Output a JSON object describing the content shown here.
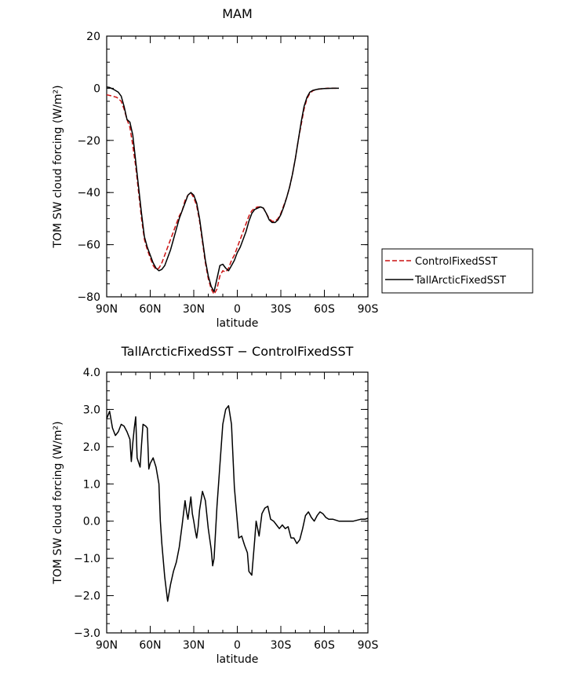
{
  "chart_data": [
    {
      "type": "line",
      "title": "MAM",
      "xlabel": "latitude",
      "ylabel": "TOM SW cloud forcing (W/m²)",
      "xlim": [
        90,
        -90
      ],
      "ylim": [
        -80,
        20
      ],
      "x_ticks": [
        90,
        60,
        30,
        0,
        -30,
        -60,
        -90
      ],
      "x_tick_labels": [
        "90N",
        "60N",
        "30N",
        "0",
        "30S",
        "60S",
        "90S"
      ],
      "y_ticks": [
        20,
        0,
        -20,
        -40,
        -60,
        -80
      ],
      "y_tick_labels": [
        "20",
        "0",
        "−20",
        "−40",
        "−60",
        "−80"
      ],
      "legend_position": "right",
      "series": [
        {
          "name": "ControlFixedSST",
          "color": "#cc1111",
          "style": "dashed",
          "points": [
            [
              90,
              -2.5
            ],
            [
              86,
              -3
            ],
            [
              83,
              -3.5
            ],
            [
              80,
              -5
            ],
            [
              78,
              -8
            ],
            [
              76,
              -12
            ],
            [
              74,
              -15
            ],
            [
              72,
              -22
            ],
            [
              70,
              -30
            ],
            [
              68,
              -40
            ],
            [
              66,
              -50
            ],
            [
              64,
              -58
            ],
            [
              62,
              -62
            ],
            [
              60,
              -65
            ],
            [
              58,
              -68
            ],
            [
              56,
              -69.5
            ],
            [
              54,
              -69
            ],
            [
              52,
              -67
            ],
            [
              50,
              -64
            ],
            [
              48,
              -61
            ],
            [
              46,
              -58
            ],
            [
              44,
              -55
            ],
            [
              42,
              -52
            ],
            [
              40,
              -49
            ],
            [
              38,
              -47
            ],
            [
              36,
              -43
            ],
            [
              34,
              -41
            ],
            [
              32,
              -40
            ],
            [
              30,
              -42
            ],
            [
              28,
              -45
            ],
            [
              26,
              -51
            ],
            [
              24,
              -59
            ],
            [
              22,
              -67
            ],
            [
              20,
              -73
            ],
            [
              18,
              -77
            ],
            [
              16,
              -79
            ],
            [
              14,
              -77
            ],
            [
              12,
              -72
            ],
            [
              10,
              -70
            ],
            [
              8,
              -70.5
            ],
            [
              6,
              -69
            ],
            [
              4,
              -66
            ],
            [
              2,
              -64
            ],
            [
              0,
              -61
            ],
            [
              -2,
              -58
            ],
            [
              -4,
              -55
            ],
            [
              -6,
              -52
            ],
            [
              -8,
              -49
            ],
            [
              -10,
              -47
            ],
            [
              -12,
              -46
            ],
            [
              -14,
              -45.5
            ],
            [
              -16,
              -45.5
            ],
            [
              -18,
              -46
            ],
            [
              -20,
              -48
            ],
            [
              -22,
              -50
            ],
            [
              -24,
              -51
            ],
            [
              -26,
              -51
            ],
            [
              -28,
              -50
            ],
            [
              -30,
              -48
            ],
            [
              -32,
              -45
            ],
            [
              -34,
              -42
            ],
            [
              -36,
              -38
            ],
            [
              -38,
              -33
            ],
            [
              -40,
              -27
            ],
            [
              -42,
              -20
            ],
            [
              -44,
              -14
            ],
            [
              -46,
              -8
            ],
            [
              -48,
              -4
            ],
            [
              -50,
              -2
            ],
            [
              -52,
              -1
            ],
            [
              -54,
              -0.5
            ],
            [
              -58,
              -0.2
            ],
            [
              -62,
              0
            ],
            [
              -66,
              0
            ],
            [
              -70,
              0
            ]
          ]
        },
        {
          "name": "TallArcticFixedSST",
          "color": "#000000",
          "style": "solid",
          "points": [
            [
              90,
              0.5
            ],
            [
              88,
              0.3
            ],
            [
              85,
              -0.5
            ],
            [
              82,
              -1.5
            ],
            [
              80,
              -3
            ],
            [
              78,
              -7
            ],
            [
              76,
              -12
            ],
            [
              74,
              -13
            ],
            [
              72,
              -18
            ],
            [
              70,
              -28
            ],
            [
              68,
              -38
            ],
            [
              66,
              -48
            ],
            [
              64,
              -57
            ],
            [
              62,
              -61
            ],
            [
              60,
              -64
            ],
            [
              58,
              -67
            ],
            [
              56,
              -69
            ],
            [
              54,
              -70
            ],
            [
              52,
              -69.5
            ],
            [
              50,
              -68
            ],
            [
              48,
              -65
            ],
            [
              46,
              -62
            ],
            [
              44,
              -58
            ],
            [
              42,
              -54
            ],
            [
              40,
              -50
            ],
            [
              38,
              -47
            ],
            [
              36,
              -44
            ],
            [
              34,
              -41
            ],
            [
              32,
              -40
            ],
            [
              30,
              -41
            ],
            [
              28,
              -44
            ],
            [
              26,
              -50
            ],
            [
              24,
              -58
            ],
            [
              22,
              -66
            ],
            [
              20,
              -72
            ],
            [
              18,
              -76
            ],
            [
              16,
              -78
            ],
            [
              14,
              -73
            ],
            [
              12,
              -68
            ],
            [
              10,
              -67.5
            ],
            [
              8,
              -69
            ],
            [
              6,
              -70
            ],
            [
              4,
              -68
            ],
            [
              2,
              -66
            ],
            [
              0,
              -63
            ],
            [
              -2,
              -61
            ],
            [
              -4,
              -58
            ],
            [
              -6,
              -55
            ],
            [
              -8,
              -51
            ],
            [
              -10,
              -48
            ],
            [
              -12,
              -46.5
            ],
            [
              -14,
              -46
            ],
            [
              -16,
              -45.5
            ],
            [
              -18,
              -46
            ],
            [
              -20,
              -48
            ],
            [
              -22,
              -50.5
            ],
            [
              -24,
              -51.5
            ],
            [
              -26,
              -51.5
            ],
            [
              -28,
              -50.5
            ],
            [
              -30,
              -48.5
            ],
            [
              -32,
              -45.5
            ],
            [
              -34,
              -42
            ],
            [
              -36,
              -38
            ],
            [
              -38,
              -33
            ],
            [
              -40,
              -27
            ],
            [
              -42,
              -20
            ],
            [
              -44,
              -13
            ],
            [
              -46,
              -7
            ],
            [
              -48,
              -3.5
            ],
            [
              -50,
              -1.5
            ],
            [
              -52,
              -0.8
            ],
            [
              -56,
              -0.3
            ],
            [
              -60,
              -0.1
            ],
            [
              -66,
              0
            ],
            [
              -70,
              0
            ]
          ]
        }
      ]
    },
    {
      "type": "line",
      "title": "TallArcticFixedSST − ControlFixedSST",
      "xlabel": "latitude",
      "ylabel": "TOM SW cloud forcing (W/m²)",
      "xlim": [
        90,
        -90
      ],
      "ylim": [
        -3.0,
        4.0
      ],
      "x_ticks": [
        90,
        60,
        30,
        0,
        -30,
        -60,
        -90
      ],
      "x_tick_labels": [
        "90N",
        "60N",
        "30N",
        "0",
        "30S",
        "60S",
        "90S"
      ],
      "y_ticks": [
        4.0,
        3.0,
        2.0,
        1.0,
        0.0,
        -1.0,
        -2.0,
        -3.0
      ],
      "y_tick_labels": [
        "4.0",
        "3.0",
        "2.0",
        "1.0",
        "0.0",
        "−1.0",
        "−2.0",
        "−3.0"
      ],
      "series": [
        {
          "color": "#000000",
          "style": "solid",
          "points": [
            [
              90,
              2.75
            ],
            [
              88,
              2.95
            ],
            [
              86,
              2.5
            ],
            [
              84,
              2.3
            ],
            [
              82,
              2.4
            ],
            [
              80,
              2.6
            ],
            [
              78,
              2.55
            ],
            [
              76,
              2.4
            ],
            [
              74,
              2.2
            ],
            [
              73,
              1.6
            ],
            [
              72,
              2.1
            ],
            [
              71,
              2.5
            ],
            [
              70,
              2.8
            ],
            [
              69,
              1.7
            ],
            [
              67,
              1.45
            ],
            [
              66,
              2.05
            ],
            [
              65,
              2.6
            ],
            [
              63,
              2.55
            ],
            [
              62,
              2.5
            ],
            [
              61,
              1.4
            ],
            [
              60,
              1.55
            ],
            [
              58,
              1.7
            ],
            [
              56,
              1.45
            ],
            [
              54,
              1.0
            ],
            [
              53,
              0.0
            ],
            [
              52,
              -0.6
            ],
            [
              50,
              -1.5
            ],
            [
              48,
              -2.15
            ],
            [
              46,
              -1.7
            ],
            [
              44,
              -1.35
            ],
            [
              42,
              -1.1
            ],
            [
              40,
              -0.7
            ],
            [
              38,
              -0.1
            ],
            [
              36,
              0.55
            ],
            [
              35,
              0.25
            ],
            [
              34,
              0.05
            ],
            [
              32,
              0.65
            ],
            [
              31,
              0.2
            ],
            [
              30,
              0.0
            ],
            [
              29,
              -0.25
            ],
            [
              28,
              -0.45
            ],
            [
              27,
              -0.15
            ],
            [
              26,
              0.3
            ],
            [
              24,
              0.8
            ],
            [
              22,
              0.55
            ],
            [
              20,
              -0.2
            ],
            [
              18,
              -0.75
            ],
            [
              17,
              -1.2
            ],
            [
              16,
              -1.0
            ],
            [
              14,
              0.4
            ],
            [
              12,
              1.5
            ],
            [
              10,
              2.6
            ],
            [
              8,
              3.0
            ],
            [
              6,
              3.1
            ],
            [
              4,
              2.6
            ],
            [
              2,
              0.9
            ],
            [
              0,
              0.0
            ],
            [
              -1,
              -0.45
            ],
            [
              -3,
              -0.4
            ],
            [
              -5,
              -0.65
            ],
            [
              -7,
              -0.85
            ],
            [
              -8,
              -1.35
            ],
            [
              -10,
              -1.45
            ],
            [
              -12,
              -0.5
            ],
            [
              -13,
              0.0
            ],
            [
              -15,
              -0.4
            ],
            [
              -17,
              0.2
            ],
            [
              -19,
              0.35
            ],
            [
              -21,
              0.4
            ],
            [
              -23,
              0.05
            ],
            [
              -25,
              0.0
            ],
            [
              -27,
              -0.1
            ],
            [
              -29,
              -0.2
            ],
            [
              -31,
              -0.1
            ],
            [
              -33,
              -0.2
            ],
            [
              -35,
              -0.15
            ],
            [
              -37,
              -0.45
            ],
            [
              -39,
              -0.45
            ],
            [
              -41,
              -0.6
            ],
            [
              -43,
              -0.5
            ],
            [
              -45,
              -0.2
            ],
            [
              -47,
              0.15
            ],
            [
              -49,
              0.25
            ],
            [
              -51,
              0.1
            ],
            [
              -53,
              0.0
            ],
            [
              -55,
              0.15
            ],
            [
              -57,
              0.25
            ],
            [
              -59,
              0.2
            ],
            [
              -61,
              0.1
            ],
            [
              -63,
              0.05
            ],
            [
              -66,
              0.05
            ],
            [
              -70,
              0.0
            ],
            [
              -75,
              0.0
            ],
            [
              -80,
              0.0
            ],
            [
              -85,
              0.05
            ],
            [
              -88,
              0.05
            ],
            [
              -90,
              0.08
            ]
          ]
        }
      ]
    }
  ]
}
